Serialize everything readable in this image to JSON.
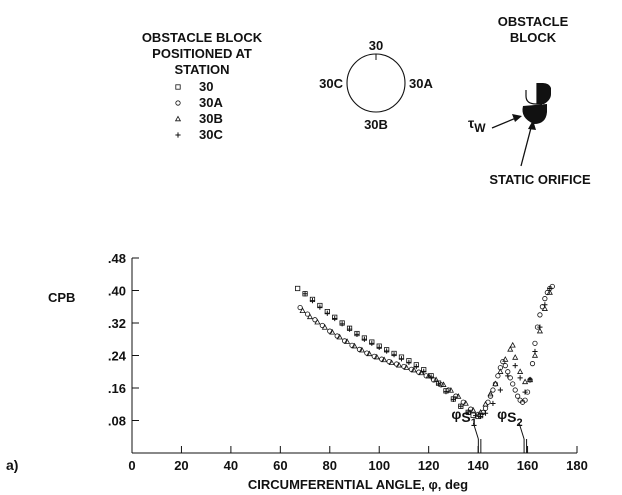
{
  "panel_label": "a)",
  "legend": {
    "title_lines": [
      "OBSTACLE BLOCK",
      "POSITIONED AT",
      "STATION"
    ],
    "entries": [
      {
        "marker": "square",
        "label": "30"
      },
      {
        "marker": "circle",
        "label": "30A"
      },
      {
        "marker": "triangle",
        "label": "30B"
      },
      {
        "marker": "plus",
        "label": "30C"
      }
    ]
  },
  "station_diagram": {
    "top": "30",
    "left": "30C",
    "right": "30A",
    "bottom": "30B"
  },
  "obstacle_inset": {
    "title_lines": [
      "OBSTACLE",
      "BLOCK"
    ],
    "tau_label": "τ",
    "tau_subscript": "W",
    "orifice_label": "STATIC ORIFICE"
  },
  "separation_markers": [
    {
      "symbol": "φ",
      "label": "S",
      "sub": "1",
      "x": 140.5
    },
    {
      "symbol": "φ",
      "label": "S",
      "sub": "2",
      "x": 159
    }
  ],
  "chart_data": {
    "type": "scatter",
    "xlabel": "CIRCUMFERENTIAL ANGLE, φ, deg",
    "ylabel": "CPB",
    "xlim": [
      0,
      180
    ],
    "ylim": [
      0,
      0.48
    ],
    "x_ticks": [
      0,
      20,
      40,
      60,
      80,
      100,
      120,
      140,
      160,
      180
    ],
    "y_ticks": [
      0.08,
      0.16,
      0.24,
      0.32,
      0.4,
      0.48
    ],
    "y_tick_labels": [
      ".08",
      ".16",
      ".24",
      ".32",
      ".40",
      ".48"
    ],
    "series": [
      {
        "name": "30",
        "marker": "square",
        "x": [
          67,
          70,
          73,
          76,
          79,
          82,
          85,
          88,
          91,
          94,
          97,
          100,
          103,
          106,
          109,
          112,
          115,
          118,
          121,
          124,
          127,
          130,
          133,
          136,
          138,
          140,
          141
        ],
        "y": [
          0.405,
          0.392,
          0.378,
          0.363,
          0.348,
          0.334,
          0.32,
          0.307,
          0.294,
          0.283,
          0.273,
          0.263,
          0.254,
          0.245,
          0.236,
          0.227,
          0.217,
          0.205,
          0.19,
          0.172,
          0.153,
          0.133,
          0.115,
          0.1,
          0.093,
          0.09,
          0.092
        ]
      },
      {
        "name": "30A",
        "marker": "circle",
        "x": [
          68,
          71,
          74,
          77,
          80,
          83,
          86,
          89,
          92,
          95,
          98,
          101,
          104,
          107,
          110,
          113,
          116,
          119,
          122,
          125,
          128,
          131,
          134,
          137,
          140,
          142,
          143,
          144,
          145,
          146,
          147,
          148,
          149,
          150,
          151,
          152,
          153,
          154,
          155,
          156,
          157,
          158,
          159,
          160,
          161,
          162,
          163,
          164,
          165,
          166,
          167,
          168,
          169,
          170
        ],
        "y": [
          0.358,
          0.342,
          0.328,
          0.314,
          0.3,
          0.288,
          0.276,
          0.265,
          0.255,
          0.246,
          0.238,
          0.231,
          0.225,
          0.219,
          0.213,
          0.206,
          0.199,
          0.19,
          0.18,
          0.168,
          0.155,
          0.14,
          0.125,
          0.108,
          0.095,
          0.1,
          0.11,
          0.125,
          0.14,
          0.155,
          0.17,
          0.19,
          0.21,
          0.225,
          0.215,
          0.2,
          0.185,
          0.17,
          0.155,
          0.14,
          0.13,
          0.125,
          0.13,
          0.15,
          0.18,
          0.22,
          0.27,
          0.31,
          0.34,
          0.36,
          0.38,
          0.395,
          0.405,
          0.41
        ]
      },
      {
        "name": "30B",
        "marker": "triangle",
        "x": [
          69,
          72,
          75,
          78,
          81,
          84,
          87,
          90,
          93,
          96,
          99,
          102,
          105,
          108,
          111,
          114,
          117,
          120,
          123,
          126,
          129,
          132,
          135,
          138,
          141,
          143,
          145,
          147,
          149,
          151,
          153,
          154,
          155,
          157,
          159,
          161,
          163,
          165,
          167,
          169
        ],
        "y": [
          0.35,
          0.335,
          0.322,
          0.309,
          0.297,
          0.285,
          0.274,
          0.263,
          0.253,
          0.244,
          0.236,
          0.229,
          0.222,
          0.216,
          0.21,
          0.204,
          0.197,
          0.189,
          0.18,
          0.168,
          0.154,
          0.139,
          0.122,
          0.105,
          0.1,
          0.12,
          0.145,
          0.17,
          0.2,
          0.23,
          0.255,
          0.265,
          0.235,
          0.2,
          0.175,
          0.18,
          0.24,
          0.3,
          0.355,
          0.395
        ]
      },
      {
        "name": "30C",
        "marker": "plus",
        "x": [
          70,
          73,
          76,
          79,
          82,
          85,
          88,
          91,
          94,
          97,
          100,
          103,
          106,
          109,
          112,
          115,
          118,
          121,
          124,
          127,
          130,
          133,
          136,
          139,
          141,
          143,
          146,
          149,
          152,
          155,
          157,
          159,
          161,
          163,
          165,
          167,
          169
        ],
        "y": [
          0.392,
          0.375,
          0.359,
          0.344,
          0.331,
          0.318,
          0.305,
          0.292,
          0.28,
          0.27,
          0.26,
          0.251,
          0.242,
          0.232,
          0.223,
          0.213,
          0.201,
          0.187,
          0.17,
          0.151,
          0.132,
          0.115,
          0.101,
          0.092,
          0.09,
          0.098,
          0.122,
          0.155,
          0.19,
          0.215,
          0.185,
          0.15,
          0.18,
          0.25,
          0.31,
          0.365,
          0.405
        ]
      }
    ]
  }
}
